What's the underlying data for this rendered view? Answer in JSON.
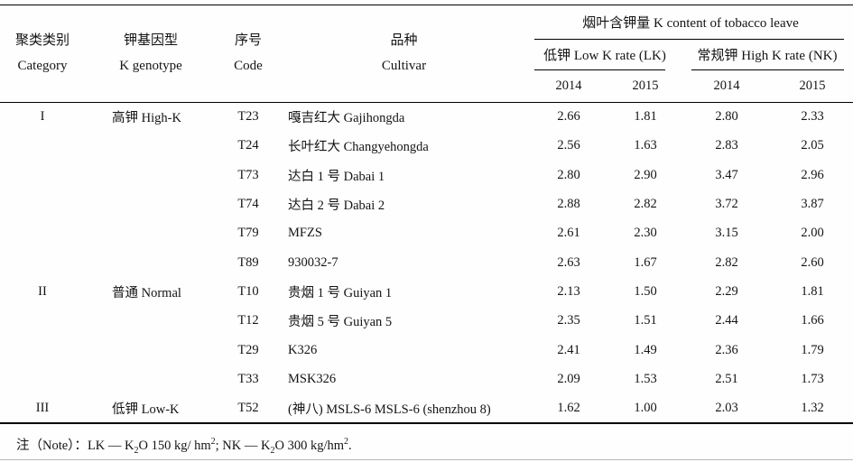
{
  "table": {
    "columns": {
      "category": {
        "zh": "聚类类别",
        "en": "Category"
      },
      "genotype": {
        "zh": "钾基因型",
        "en": "K genotype"
      },
      "code": {
        "zh": "序号",
        "en": "Code"
      },
      "cultivar": {
        "zh": "品种",
        "en": "Cultivar"
      }
    },
    "group_header": "烟叶含钾量 K content of tobacco leave",
    "subgroups": [
      {
        "label": "低钾 Low K rate (LK)",
        "years": [
          "2014",
          "2015"
        ]
      },
      {
        "label": "常规钾 High K rate (NK)",
        "years": [
          "2014",
          "2015"
        ]
      }
    ],
    "rows": [
      {
        "category": "I",
        "genotype": "高钾 High-K",
        "code": "T23",
        "cultivar": "嘎吉红大 Gajihongda",
        "lk2014": "2.66",
        "lk2015": "1.81",
        "nk2014": "2.80",
        "nk2015": "2.33"
      },
      {
        "category": "",
        "genotype": "",
        "code": "T24",
        "cultivar": "长叶红大 Changyehongda",
        "lk2014": "2.56",
        "lk2015": "1.63",
        "nk2014": "2.83",
        "nk2015": "2.05"
      },
      {
        "category": "",
        "genotype": "",
        "code": "T73",
        "cultivar": "达白 1 号 Dabai 1",
        "lk2014": "2.80",
        "lk2015": "2.90",
        "nk2014": "3.47",
        "nk2015": "2.96"
      },
      {
        "category": "",
        "genotype": "",
        "code": "T74",
        "cultivar": "达白 2 号 Dabai 2",
        "lk2014": "2.88",
        "lk2015": "2.82",
        "nk2014": "3.72",
        "nk2015": "3.87"
      },
      {
        "category": "",
        "genotype": "",
        "code": "T79",
        "cultivar": "MFZS",
        "lk2014": "2.61",
        "lk2015": "2.30",
        "nk2014": "3.15",
        "nk2015": "2.00"
      },
      {
        "category": "",
        "genotype": "",
        "code": "T89",
        "cultivar": "930032-7",
        "lk2014": "2.63",
        "lk2015": "1.67",
        "nk2014": "2.82",
        "nk2015": "2.60"
      },
      {
        "category": "II",
        "genotype": "普通 Normal",
        "code": "T10",
        "cultivar": "贵烟 1 号 Guiyan 1",
        "lk2014": "2.13",
        "lk2015": "1.50",
        "nk2014": "2.29",
        "nk2015": "1.81"
      },
      {
        "category": "",
        "genotype": "",
        "code": "T12",
        "cultivar": "贵烟 5 号 Guiyan 5",
        "lk2014": "2.35",
        "lk2015": "1.51",
        "nk2014": "2.44",
        "nk2015": "1.66"
      },
      {
        "category": "",
        "genotype": "",
        "code": "T29",
        "cultivar": "K326",
        "lk2014": "2.41",
        "lk2015": "1.49",
        "nk2014": "2.36",
        "nk2015": "1.79"
      },
      {
        "category": "",
        "genotype": "",
        "code": "T33",
        "cultivar": "MSK326",
        "lk2014": "2.09",
        "lk2015": "1.53",
        "nk2014": "2.51",
        "nk2015": "1.73"
      },
      {
        "category": "III",
        "genotype": "低钾 Low-K",
        "code": "T52",
        "cultivar": "(神八) MSLS-6 MSLS-6 (shenzhou 8)",
        "lk2014": "1.62",
        "lk2015": "1.00",
        "nk2014": "2.03",
        "nk2015": "1.32"
      }
    ]
  },
  "note": {
    "prefix": "注（Note）：",
    "parts": [
      {
        "text": "LK — K"
      },
      {
        "sub": "2"
      },
      {
        "text": "O 150 kg/ hm"
      },
      {
        "sup": "2"
      },
      {
        "text": "; NK — K"
      },
      {
        "sub": "2"
      },
      {
        "text": "O 300 kg/hm"
      },
      {
        "sup": "2"
      },
      {
        "text": "."
      }
    ]
  }
}
